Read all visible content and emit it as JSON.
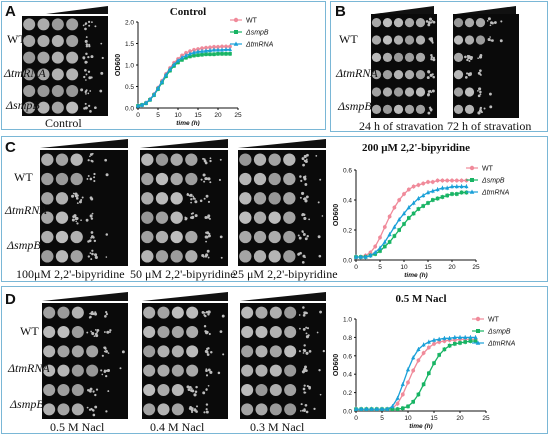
{
  "strains": [
    "WT",
    "ΔtmRNA",
    "ΔsmpB"
  ],
  "colors": {
    "wt": "#f08a9a",
    "smpB": "#18b464",
    "tmRNA": "#1aa0d8",
    "border": "#7ab7d6"
  },
  "panels": {
    "A": {
      "letter": "A",
      "plate_caption": "Control"
    },
    "B": {
      "letter": "B",
      "captions": [
        "24 h of stravation",
        "72 h of stravation"
      ]
    },
    "C": {
      "letter": "C",
      "captions": [
        "100μM 2,2'-bipyridine",
        "50 μM 2,2'-bipyridine",
        "25 μM 2,2'-bipyridine"
      ]
    },
    "D": {
      "letter": "D",
      "captions": [
        "0.5 M Nacl",
        "0.4 M Nacl",
        "0.3 M Nacl"
      ]
    }
  },
  "chart_data": [
    {
      "id": "A",
      "type": "line",
      "title": "Control",
      "xlabel": "time (h)",
      "ylabel": "OD600",
      "xlim": [
        0,
        25
      ],
      "ylim": [
        0,
        2.0
      ],
      "xticks": [
        0,
        5,
        10,
        15,
        20,
        25
      ],
      "yticks": [
        0.0,
        0.5,
        1.0,
        1.5,
        2.0
      ],
      "ytick_labels": [
        "0.0",
        "0.5",
        "1.0",
        "1.5",
        "2.0"
      ],
      "legend": "top-right",
      "x": [
        0,
        1,
        2,
        3,
        4,
        5,
        6,
        7,
        8,
        9,
        10,
        11,
        12,
        13,
        14,
        15,
        16,
        17,
        18,
        19,
        20,
        21,
        22,
        23
      ],
      "series": [
        {
          "name": "WT",
          "marker": "circle",
          "values": [
            0.05,
            0.07,
            0.12,
            0.2,
            0.32,
            0.47,
            0.63,
            0.79,
            0.93,
            1.05,
            1.14,
            1.22,
            1.28,
            1.32,
            1.35,
            1.37,
            1.39,
            1.4,
            1.41,
            1.42,
            1.42,
            1.43,
            1.43,
            1.43
          ]
        },
        {
          "name": "ΔsmpB",
          "marker": "square",
          "values": [
            0.05,
            0.07,
            0.11,
            0.19,
            0.3,
            0.44,
            0.59,
            0.74,
            0.87,
            0.98,
            1.06,
            1.12,
            1.17,
            1.2,
            1.22,
            1.23,
            1.24,
            1.25,
            1.25,
            1.25,
            1.26,
            1.26,
            1.26,
            1.26
          ]
        },
        {
          "name": "ΔtmRNA",
          "marker": "triangle",
          "values": [
            0.05,
            0.07,
            0.12,
            0.2,
            0.31,
            0.46,
            0.61,
            0.77,
            0.9,
            1.01,
            1.1,
            1.17,
            1.22,
            1.26,
            1.29,
            1.31,
            1.32,
            1.33,
            1.34,
            1.35,
            1.35,
            1.35,
            1.36,
            1.36
          ]
        }
      ]
    },
    {
      "id": "C",
      "type": "line",
      "title": "200 μM 2,2'-bipyridine",
      "xlabel": "time (h)",
      "ylabel": "OD600",
      "xlim": [
        0,
        25
      ],
      "ylim": [
        0,
        0.6
      ],
      "xticks": [
        0,
        5,
        10,
        15,
        20,
        25
      ],
      "yticks": [
        0.0,
        0.2,
        0.4,
        0.6
      ],
      "ytick_labels": [
        "0.0",
        "0.2",
        "0.4",
        "0.6"
      ],
      "legend": "top-right",
      "x": [
        0,
        1,
        2,
        3,
        4,
        5,
        6,
        7,
        8,
        9,
        10,
        11,
        12,
        13,
        14,
        15,
        16,
        17,
        18,
        19,
        20,
        21,
        22,
        23
      ],
      "series": [
        {
          "name": "WT",
          "marker": "circle",
          "values": [
            0.02,
            0.02,
            0.03,
            0.05,
            0.09,
            0.15,
            0.22,
            0.29,
            0.35,
            0.4,
            0.44,
            0.47,
            0.49,
            0.5,
            0.51,
            0.52,
            0.52,
            0.53,
            0.53,
            0.53,
            0.53,
            0.53,
            0.53,
            0.53
          ]
        },
        {
          "name": "ΔsmpB",
          "marker": "square",
          "values": [
            0.02,
            0.02,
            0.02,
            0.03,
            0.04,
            0.06,
            0.09,
            0.12,
            0.16,
            0.2,
            0.24,
            0.28,
            0.31,
            0.34,
            0.36,
            0.38,
            0.4,
            0.41,
            0.42,
            0.43,
            0.44,
            0.44,
            0.45,
            0.45
          ]
        },
        {
          "name": "ΔtmRNA",
          "marker": "triangle",
          "values": [
            0.02,
            0.02,
            0.02,
            0.03,
            0.05,
            0.08,
            0.12,
            0.17,
            0.22,
            0.27,
            0.31,
            0.35,
            0.38,
            0.41,
            0.43,
            0.45,
            0.46,
            0.47,
            0.48,
            0.48,
            0.49,
            0.49,
            0.49,
            0.49
          ]
        }
      ]
    },
    {
      "id": "D",
      "type": "line",
      "title": "0.5 M Nacl",
      "xlabel": "time (h)",
      "ylabel": "OD600",
      "xlim": [
        0,
        25
      ],
      "ylim": [
        0,
        1.0
      ],
      "xticks": [
        0,
        5,
        10,
        15,
        20,
        25
      ],
      "yticks": [
        0.0,
        0.2,
        0.4,
        0.6,
        0.8,
        1.0
      ],
      "ytick_labels": [
        "0.0",
        "0.2",
        "0.4",
        "0.6",
        "0.8",
        "1.0"
      ],
      "legend": "top-right",
      "x": [
        0,
        1,
        2,
        3,
        4,
        5,
        6,
        7,
        8,
        9,
        10,
        11,
        12,
        13,
        14,
        15,
        16,
        17,
        18,
        19,
        20,
        21,
        22,
        23
      ],
      "series": [
        {
          "name": "WT",
          "marker": "circle",
          "values": [
            0.02,
            0.02,
            0.02,
            0.02,
            0.02,
            0.02,
            0.02,
            0.03,
            0.08,
            0.18,
            0.31,
            0.44,
            0.55,
            0.63,
            0.69,
            0.73,
            0.75,
            0.76,
            0.77,
            0.77,
            0.78,
            0.78,
            0.78,
            0.78
          ]
        },
        {
          "name": "ΔsmpB",
          "marker": "square",
          "values": [
            0.02,
            0.02,
            0.02,
            0.02,
            0.02,
            0.02,
            0.02,
            0.02,
            0.02,
            0.03,
            0.05,
            0.1,
            0.18,
            0.29,
            0.41,
            0.52,
            0.61,
            0.67,
            0.71,
            0.73,
            0.74,
            0.75,
            0.76,
            0.76
          ]
        },
        {
          "name": "ΔtmRNA",
          "marker": "triangle",
          "values": [
            0.02,
            0.02,
            0.02,
            0.02,
            0.02,
            0.02,
            0.02,
            0.05,
            0.14,
            0.29,
            0.45,
            0.58,
            0.67,
            0.72,
            0.75,
            0.77,
            0.78,
            0.79,
            0.79,
            0.8,
            0.8,
            0.8,
            0.8,
            0.8
          ]
        }
      ]
    }
  ]
}
